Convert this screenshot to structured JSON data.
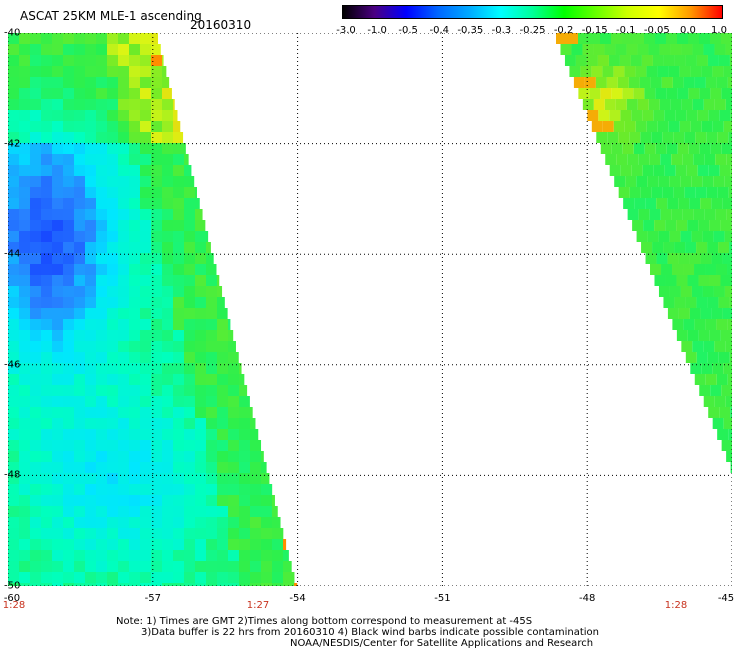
{
  "header": {
    "title": "ASCAT 25KM MLE-1 ascending",
    "date": "20160310"
  },
  "colorbar": {
    "labels": [
      "-3.0",
      "-1.0",
      "-0.5",
      "-0.4",
      "-0.35",
      "-0.3",
      "-0.25",
      "-0.2",
      "-0.15",
      "-0.1",
      "-0.05",
      "0.0",
      "1.0"
    ],
    "colors": [
      "#000000",
      "#4b0082",
      "#0000ff",
      "#0066ff",
      "#00aaff",
      "#00ffff",
      "#00ff99",
      "#00ff00",
      "#66ff00",
      "#ccff00",
      "#ffff00",
      "#ff9900",
      "#ff0000"
    ]
  },
  "map": {
    "lat_labels": [
      "-40",
      "-42",
      "-44",
      "-46",
      "-48",
      "-50"
    ],
    "lon_labels": [
      "-60",
      "-57",
      "-54",
      "-51",
      "-48",
      "-45"
    ],
    "time_labels": [
      "1:28",
      "1:27",
      "1:28"
    ],
    "lat_range": [
      -50,
      -40
    ],
    "lon_range": [
      -60,
      -45
    ]
  },
  "notes": {
    "line1": "Note: 1) Times are GMT 2)Times along bottom correspond to measurement at -45S",
    "line2": "3)Data buffer is 22 hrs from 20160310 4) Black wind barbs indicate possible contamination",
    "line3": "NOAA/NESDIS/Center for Satellite Applications and Research"
  }
}
